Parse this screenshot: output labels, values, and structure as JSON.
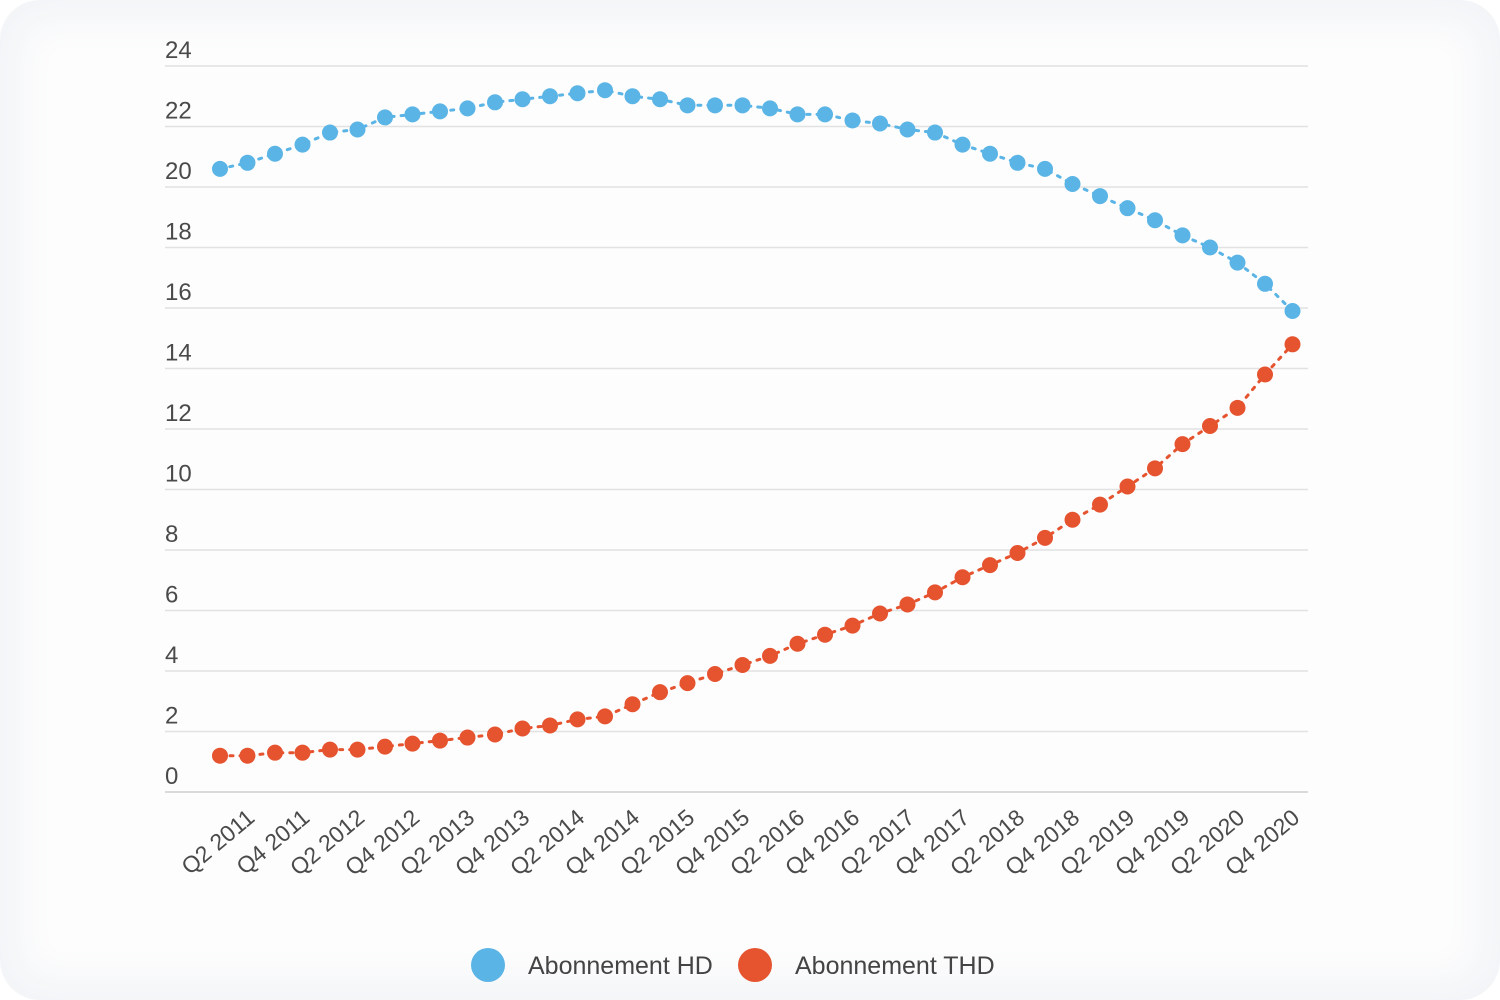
{
  "chart_data": {
    "type": "line",
    "x_tick_labels": [
      "Q2 2011",
      "Q4 2011",
      "Q2 2012",
      "Q4 2012",
      "Q2 2013",
      "Q4 2013",
      "Q2 2014",
      "Q4 2014",
      "Q2 2015",
      "Q4 2015",
      "Q2 2016",
      "Q4 2016",
      "Q2 2017",
      "Q4 2017",
      "Q2 2018",
      "Q4 2018",
      "Q2 2019",
      "Q4 2019",
      "Q2 2020",
      "Q4 2020"
    ],
    "y_ticks": [
      0,
      2,
      4,
      6,
      8,
      10,
      12,
      14,
      16,
      18,
      20,
      22,
      24
    ],
    "ylim": [
      0,
      24
    ],
    "grid": true,
    "legend_position": "bottom",
    "series": [
      {
        "name": "Abonnement HD",
        "color": "#5ab4e5",
        "values": [
          20.6,
          20.8,
          21.1,
          21.4,
          21.8,
          21.9,
          22.3,
          22.4,
          22.5,
          22.6,
          22.8,
          22.9,
          23.0,
          23.1,
          23.2,
          23.0,
          22.9,
          22.7,
          22.7,
          22.7,
          22.6,
          22.4,
          22.4,
          22.2,
          22.1,
          21.9,
          21.8,
          21.4,
          21.1,
          20.8,
          20.6,
          20.1,
          19.7,
          19.3,
          18.9,
          18.4,
          18.0,
          17.5,
          16.8,
          15.9
        ]
      },
      {
        "name": "Abonnement THD",
        "color": "#e5532f",
        "values": [
          1.2,
          1.2,
          1.3,
          1.3,
          1.4,
          1.4,
          1.5,
          1.6,
          1.7,
          1.8,
          1.9,
          2.1,
          2.2,
          2.4,
          2.5,
          2.9,
          3.3,
          3.6,
          3.9,
          4.2,
          4.5,
          4.9,
          5.2,
          5.5,
          5.9,
          6.2,
          6.6,
          7.1,
          7.5,
          7.9,
          8.4,
          9.0,
          9.5,
          10.1,
          10.7,
          11.5,
          12.1,
          12.7,
          13.8,
          14.8
        ]
      }
    ]
  }
}
